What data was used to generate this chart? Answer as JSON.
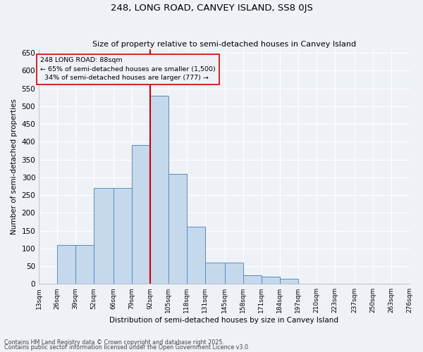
{
  "title": "248, LONG ROAD, CANVEY ISLAND, SS8 0JS",
  "subtitle": "Size of property relative to semi-detached houses in Canvey Island",
  "xlabel": "Distribution of semi-detached houses by size in Canvey Island",
  "ylabel": "Number of semi-detached properties",
  "footnote1": "Contains HM Land Registry data © Crown copyright and database right 2025.",
  "footnote2": "Contains public sector information licensed under the Open Government Licence v3.0.",
  "property_size": 92,
  "pct_smaller": 65,
  "count_smaller": 1500,
  "pct_larger": 34,
  "count_larger": 777,
  "bin_edges": [
    13,
    26,
    39,
    52,
    66,
    79,
    92,
    105,
    118,
    131,
    145,
    158,
    171,
    184,
    197,
    210,
    223,
    237,
    250,
    263,
    276
  ],
  "bin_labels": [
    "13sqm",
    "26sqm",
    "39sqm",
    "52sqm",
    "66sqm",
    "79sqm",
    "92sqm",
    "105sqm",
    "118sqm",
    "131sqm",
    "145sqm",
    "158sqm",
    "171sqm",
    "184sqm",
    "197sqm",
    "210sqm",
    "223sqm",
    "237sqm",
    "250sqm",
    "263sqm",
    "276sqm"
  ],
  "bar_heights": [
    0,
    110,
    110,
    270,
    270,
    390,
    530,
    310,
    160,
    60,
    60,
    25,
    20,
    15,
    0,
    0,
    0,
    0,
    0,
    0
  ],
  "bar_color": "#c5d8ec",
  "bar_edge_color": "#5b8db8",
  "line_color": "#cc0000",
  "bg_color": "#eef2f7",
  "grid_color": "#ffffff",
  "ylim": [
    0,
    660
  ],
  "yticks": [
    0,
    50,
    100,
    150,
    200,
    250,
    300,
    350,
    400,
    450,
    500,
    550,
    600,
    650
  ],
  "annotation_box_color": "#cc0000",
  "figsize": [
    6.0,
    5.0
  ],
  "dpi": 100
}
